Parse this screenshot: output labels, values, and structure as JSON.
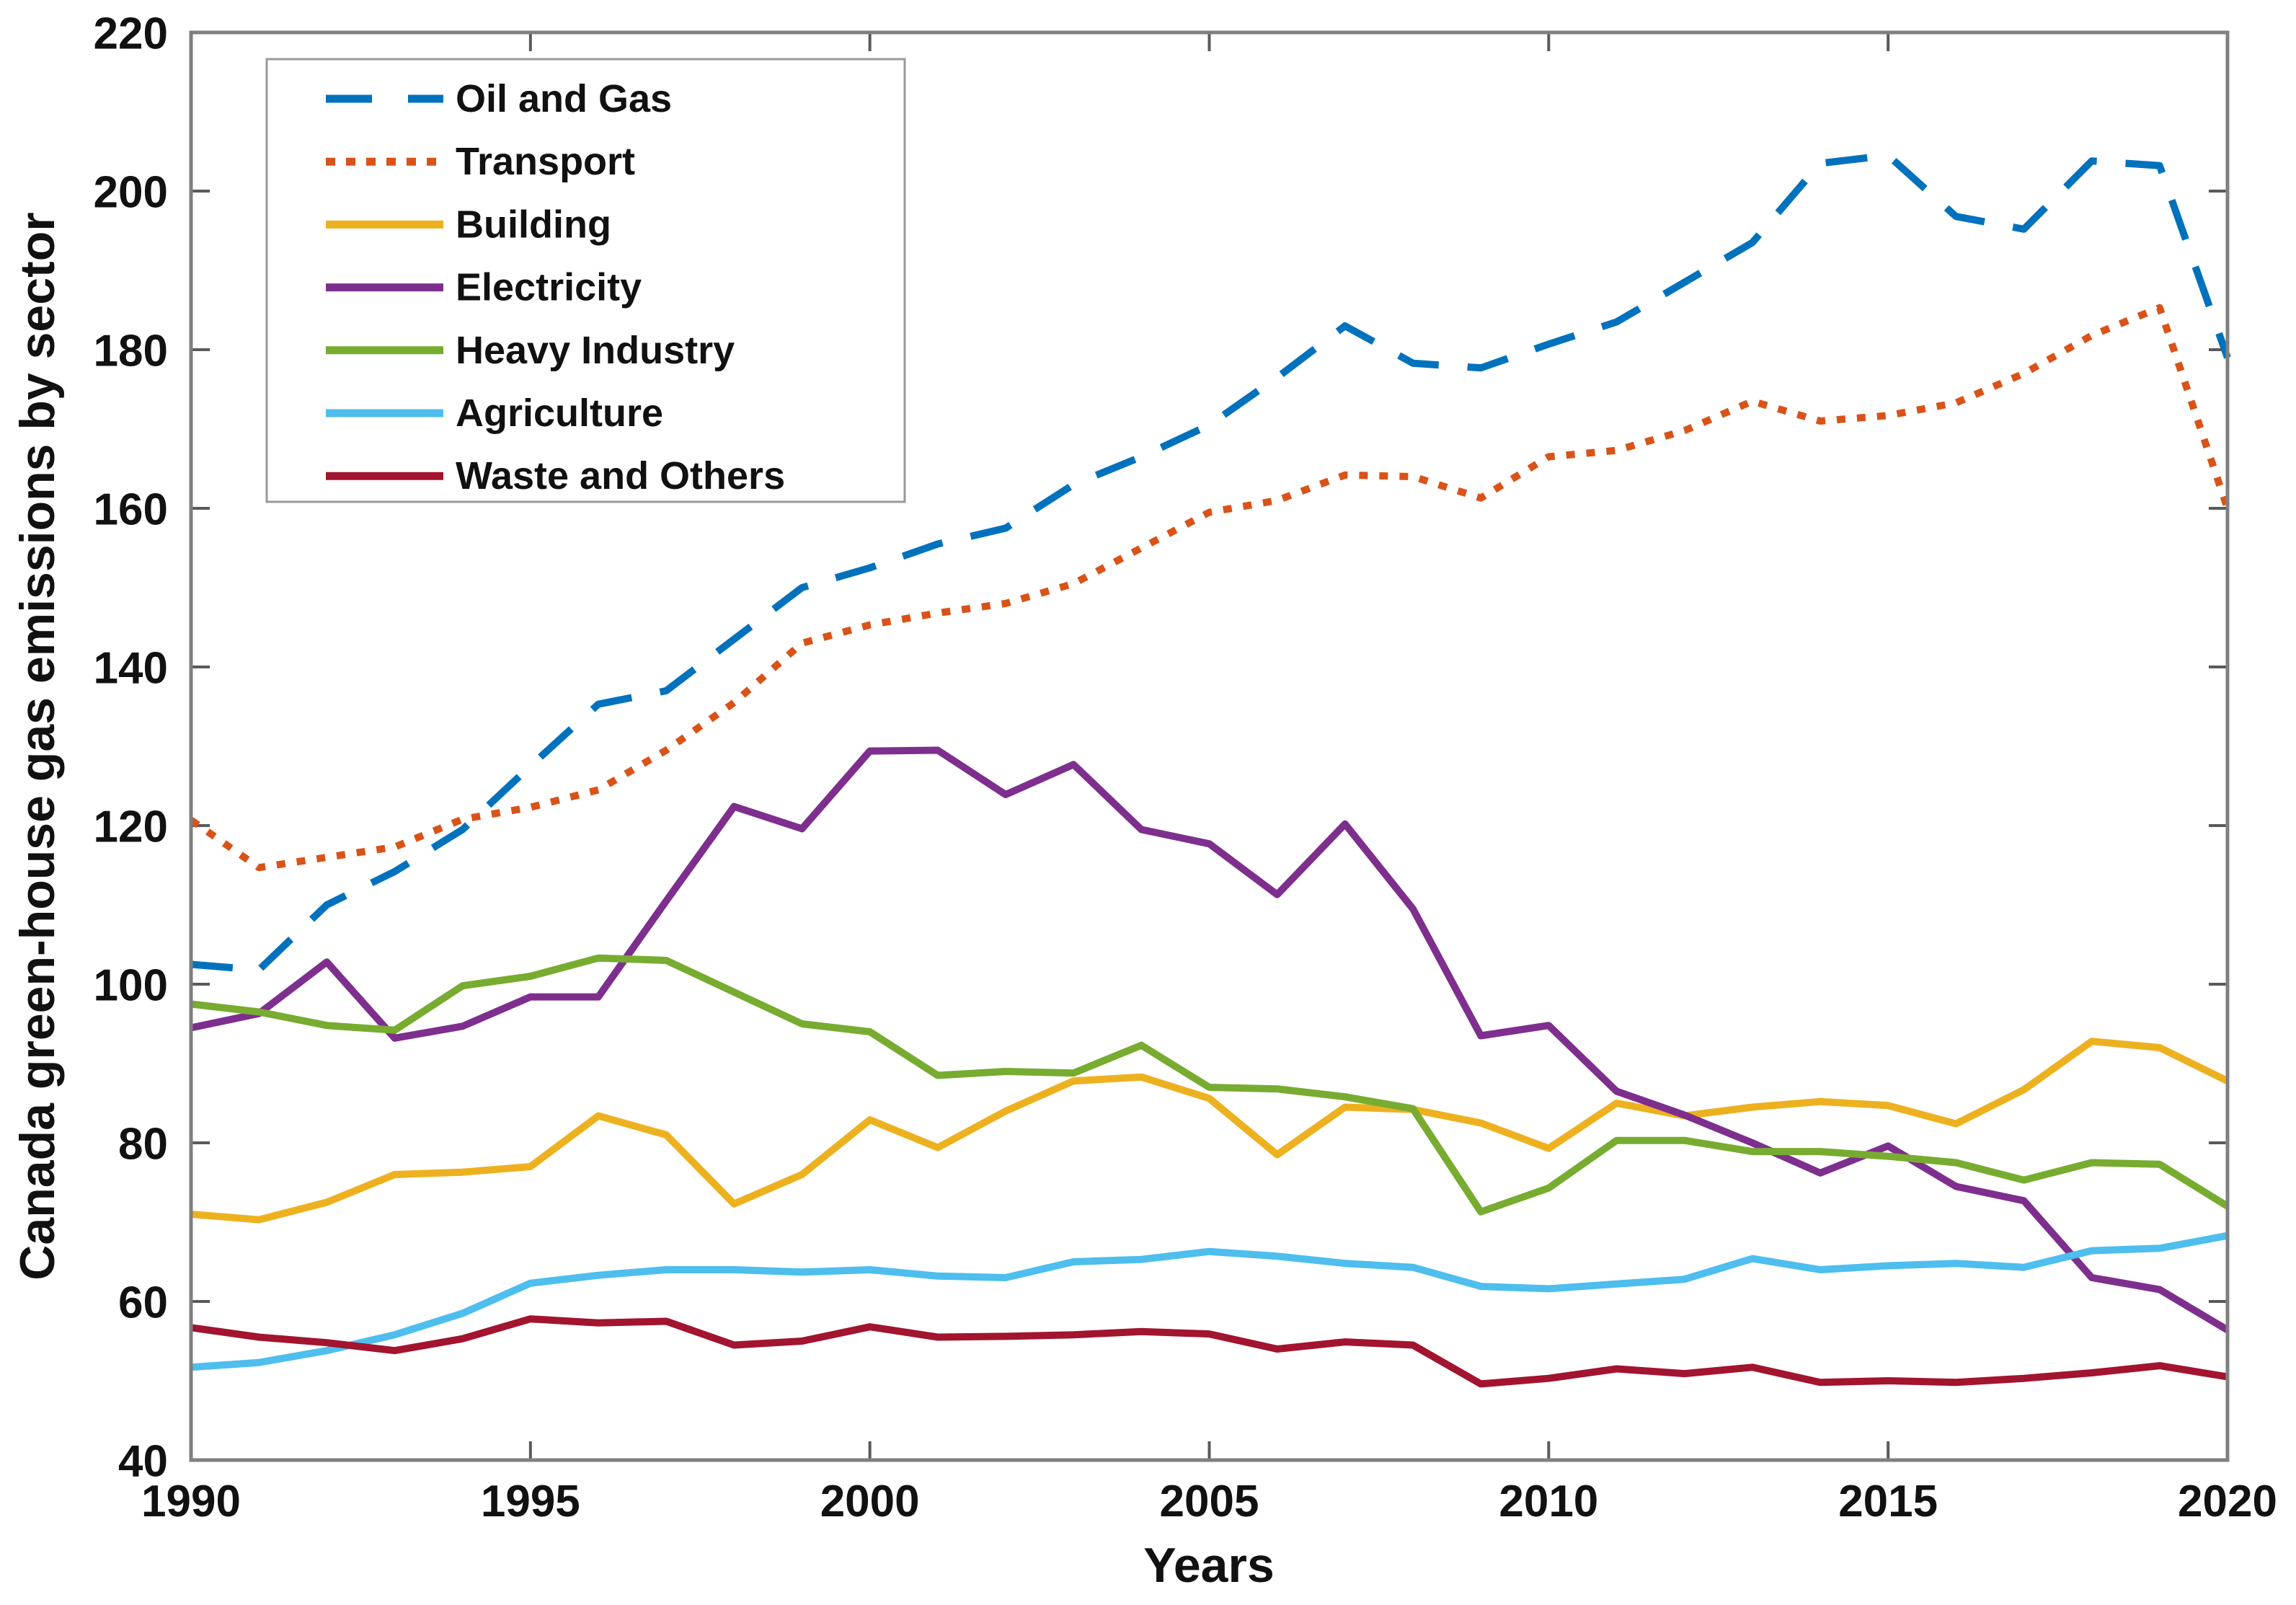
{
  "chart_data": {
    "type": "line",
    "title": "",
    "xlabel": "Years",
    "ylabel": "Canada green-house gas emissions by sector",
    "xlim": [
      1990,
      2020
    ],
    "ylim": [
      40,
      220
    ],
    "xticks": [
      1990,
      1995,
      2000,
      2005,
      2010,
      2015,
      2020
    ],
    "yticks": [
      40,
      60,
      80,
      100,
      120,
      140,
      160,
      180,
      200,
      220
    ],
    "grid": false,
    "legend_position": "top-left",
    "x": [
      1990,
      1991,
      1992,
      1993,
      1994,
      1995,
      1996,
      1997,
      1998,
      1999,
      2000,
      2001,
      2002,
      2003,
      2004,
      2005,
      2006,
      2007,
      2008,
      2009,
      2010,
      2011,
      2012,
      2013,
      2014,
      2015,
      2016,
      2017,
      2018,
      2019,
      2020
    ],
    "series": [
      {
        "name": "Oil and Gas",
        "color": "#0072BD",
        "linestyle": "dashed",
        "values": [
          102.5,
          101.8,
          110,
          114.2,
          119.5,
          127.5,
          135.3,
          137,
          143.5,
          150,
          152.5,
          155.5,
          157.5,
          163,
          166.5,
          170.5,
          176.5,
          183,
          178.3,
          177.7,
          180.7,
          183.5,
          188.5,
          193.5,
          203.5,
          204.5,
          196.8,
          195.2,
          203.8,
          203.2,
          179
        ]
      },
      {
        "name": "Transport",
        "color": "#D95319",
        "linestyle": "dotted",
        "values": [
          120.7,
          114.7,
          116,
          117.3,
          120.8,
          122.3,
          124.5,
          129.5,
          135.5,
          143,
          145.3,
          146.8,
          148,
          150.5,
          155,
          159.5,
          161,
          164.2,
          164,
          161.3,
          166.5,
          167.3,
          169.8,
          173.5,
          171,
          171.7,
          173.3,
          177,
          181.8,
          185.3,
          160
        ]
      },
      {
        "name": "Building",
        "color": "#EDB120",
        "linestyle": "solid",
        "values": [
          71,
          70.3,
          72.5,
          76,
          76.3,
          77,
          83.4,
          81,
          72.3,
          76,
          82.9,
          79.4,
          84,
          87.8,
          88.3,
          85.6,
          78.5,
          84.5,
          84.2,
          82.5,
          79.3,
          85,
          83.4,
          84.5,
          85.2,
          84.7,
          82.4,
          86.7,
          92.8,
          92,
          87.8
        ]
      },
      {
        "name": "Electricity",
        "color": "#7E2F8E",
        "linestyle": "solid",
        "values": [
          94.5,
          96.3,
          102.8,
          93.2,
          94.7,
          98.4,
          98.4,
          110.5,
          122.4,
          119.6,
          129.4,
          129.5,
          123.9,
          127.7,
          119.5,
          117.7,
          111.3,
          120.2,
          109.5,
          93.5,
          94.8,
          86.5,
          83.5,
          80,
          76.2,
          79.6,
          74.5,
          72.7,
          63,
          61.5,
          56.4
        ]
      },
      {
        "name": "Heavy Industry",
        "color": "#77AC30",
        "linestyle": "solid",
        "values": [
          97.5,
          96.5,
          94.8,
          94.2,
          99.8,
          101,
          103.3,
          103,
          99,
          95,
          94,
          88.5,
          89,
          88.8,
          92.3,
          87,
          86.8,
          85.8,
          84.3,
          71.3,
          74.3,
          80.3,
          80.3,
          78.9,
          78.9,
          78.3,
          77.5,
          75.3,
          77.5,
          77.3,
          72
        ]
      },
      {
        "name": "Agriculture",
        "color": "#4DBEEE",
        "linestyle": "solid",
        "values": [
          51.7,
          52.3,
          53.8,
          55.8,
          58.5,
          62.3,
          63.3,
          64,
          64,
          63.7,
          64,
          63.2,
          63,
          65,
          65.3,
          66.3,
          65.7,
          64.8,
          64.3,
          61.9,
          61.6,
          62.2,
          62.8,
          65.4,
          64,
          64.5,
          64.8,
          64.3,
          66.4,
          66.7,
          68.3
        ]
      },
      {
        "name": "Waste and Others",
        "color": "#A2142F",
        "linestyle": "solid",
        "values": [
          56.7,
          55.5,
          54.8,
          53.8,
          55.3,
          57.8,
          57.3,
          57.5,
          54.5,
          55,
          56.8,
          55.5,
          55.6,
          55.8,
          56.2,
          55.9,
          54,
          54.9,
          54.5,
          49.6,
          50.3,
          51.5,
          50.9,
          51.7,
          49.8,
          50,
          49.8,
          50.3,
          51,
          51.9,
          50.5
        ]
      }
    ]
  },
  "colors": {
    "background": "#ffffff",
    "axis": "#7f7f7f",
    "tick": "#5a5a5a",
    "text": "#111111",
    "legend_border": "#9a9a9a"
  }
}
